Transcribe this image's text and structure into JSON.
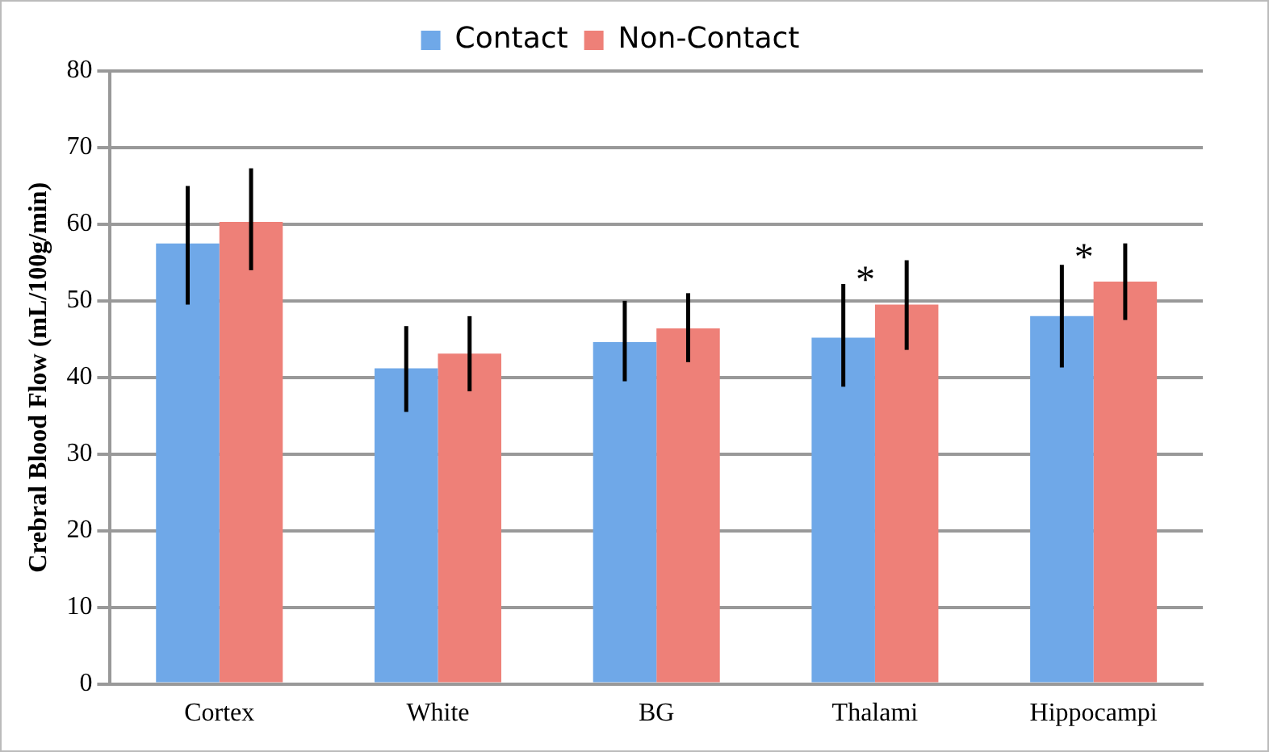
{
  "chart_data": {
    "type": "bar",
    "ylabel": "Crebral Blood Flow (mL/100g/min)",
    "categories": [
      "Cortex",
      "White",
      "BG",
      "Thalami",
      "Hippocampi"
    ],
    "series": [
      {
        "name": "Contact",
        "color": "#6fa8e8",
        "values": [
          57.5,
          41.2,
          44.6,
          45.2,
          48.0
        ],
        "errors": [
          [
            49.5,
            65.0
          ],
          [
            35.5,
            46.7
          ],
          [
            39.5,
            50.0
          ],
          [
            38.8,
            52.2
          ],
          [
            41.3,
            54.7
          ]
        ]
      },
      {
        "name": "Non-Contact",
        "color": "#ee8078",
        "values": [
          60.3,
          43.1,
          46.4,
          49.5,
          52.5
        ],
        "errors": [
          [
            54.0,
            67.3
          ],
          [
            38.2,
            48.0
          ],
          [
            42.0,
            51.0
          ],
          [
            43.6,
            55.3
          ],
          [
            47.5,
            57.5
          ]
        ]
      }
    ],
    "ylim": [
      0,
      80
    ],
    "yticks": [
      0,
      10,
      20,
      30,
      40,
      50,
      60,
      70,
      80
    ],
    "grid": "y",
    "legend": "top",
    "annotations": [
      {
        "text": "*",
        "x": "Thalami",
        "y": 49.5
      },
      {
        "text": "*",
        "x": "Hippocampi",
        "y": 52.5
      }
    ]
  }
}
